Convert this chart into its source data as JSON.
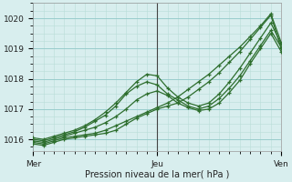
{
  "xlabel": "Pression niveau de la mer( hPa )",
  "yticks": [
    1016,
    1017,
    1018,
    1019,
    1020
  ],
  "ylim": [
    1015.6,
    1020.5
  ],
  "xlim": [
    0,
    48
  ],
  "xtick_positions": [
    0,
    24,
    48
  ],
  "xtick_labels": [
    "Mer",
    "Jeu",
    "Ven"
  ],
  "jeu_vline": 16,
  "bg_color": "#d8eeee",
  "grid_minor_color": "#b8ddd8",
  "grid_major_color": "#99cccc",
  "line_color": "#2d6e2d",
  "series": [
    {
      "x": [
        0,
        2,
        4,
        6,
        8,
        10,
        12,
        14,
        16,
        18,
        20,
        22,
        24,
        26,
        28,
        30,
        32,
        34,
        36,
        38,
        40,
        42,
        44,
        46,
        48
      ],
      "y": [
        1015.85,
        1015.8,
        1015.9,
        1016.0,
        1016.05,
        1016.1,
        1016.15,
        1016.2,
        1016.3,
        1016.5,
        1016.7,
        1016.85,
        1017.0,
        1017.1,
        1017.2,
        1017.4,
        1017.65,
        1017.9,
        1018.2,
        1018.55,
        1018.9,
        1019.3,
        1019.7,
        1020.1,
        1019.0
      ]
    },
    {
      "x": [
        0,
        2,
        4,
        6,
        8,
        10,
        12,
        14,
        16,
        18,
        20,
        22,
        24,
        26,
        28,
        30,
        32,
        34,
        36,
        38,
        40,
        42,
        44,
        46,
        48
      ],
      "y": [
        1015.9,
        1015.85,
        1015.95,
        1016.05,
        1016.1,
        1016.15,
        1016.2,
        1016.3,
        1016.45,
        1016.6,
        1016.75,
        1016.9,
        1017.05,
        1017.2,
        1017.4,
        1017.65,
        1017.9,
        1018.15,
        1018.45,
        1018.75,
        1019.05,
        1019.4,
        1019.75,
        1020.15,
        1019.2
      ]
    },
    {
      "x": [
        0,
        2,
        4,
        6,
        8,
        10,
        12,
        14,
        16,
        18,
        20,
        22,
        24,
        26,
        28,
        30,
        32,
        34,
        36,
        38,
        40,
        42,
        44,
        46,
        48
      ],
      "y": [
        1015.95,
        1015.9,
        1016.0,
        1016.1,
        1016.2,
        1016.3,
        1016.4,
        1016.55,
        1016.75,
        1017.0,
        1017.3,
        1017.5,
        1017.6,
        1017.45,
        1017.2,
        1017.05,
        1016.95,
        1017.0,
        1017.2,
        1017.55,
        1017.95,
        1018.5,
        1019.0,
        1019.5,
        1018.9
      ]
    },
    {
      "x": [
        0,
        2,
        4,
        6,
        8,
        10,
        12,
        14,
        16,
        18,
        20,
        22,
        24,
        26,
        28,
        30,
        32,
        34,
        36,
        38,
        40,
        42,
        44,
        46,
        48
      ],
      "y": [
        1016.0,
        1015.95,
        1016.05,
        1016.15,
        1016.25,
        1016.4,
        1016.6,
        1016.8,
        1017.1,
        1017.5,
        1017.75,
        1017.9,
        1017.8,
        1017.5,
        1017.3,
        1017.1,
        1017.0,
        1017.1,
        1017.35,
        1017.7,
        1018.1,
        1018.6,
        1019.1,
        1019.6,
        1019.05
      ]
    },
    {
      "x": [
        0,
        2,
        4,
        6,
        8,
        10,
        12,
        14,
        16,
        18,
        20,
        22,
        24,
        26,
        28,
        30,
        32,
        34,
        36,
        38,
        40,
        42,
        44,
        46,
        48
      ],
      "y": [
        1016.05,
        1016.0,
        1016.1,
        1016.2,
        1016.3,
        1016.45,
        1016.65,
        1016.9,
        1017.2,
        1017.55,
        1017.9,
        1018.15,
        1018.1,
        1017.7,
        1017.4,
        1017.2,
        1017.1,
        1017.2,
        1017.5,
        1017.9,
        1018.35,
        1018.85,
        1019.35,
        1019.85,
        1019.15
      ]
    }
  ]
}
